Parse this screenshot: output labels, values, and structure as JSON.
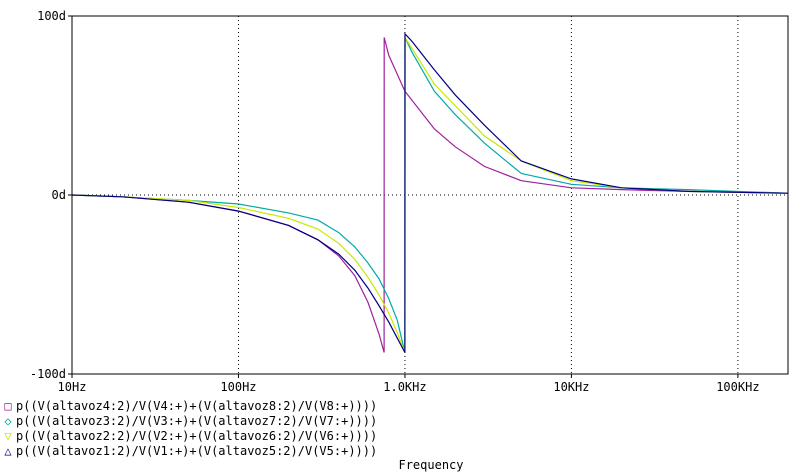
{
  "chart_data": {
    "type": "line",
    "xlabel": "Frequency",
    "ylabel": "",
    "x_scale": "log",
    "xlim": [
      10,
      200000
    ],
    "ylim": [
      -100,
      100
    ],
    "x_tick_labels": [
      "10Hz",
      "100Hz",
      "1.0KHz",
      "10KHz",
      "100KHz"
    ],
    "x_tick_values": [
      10,
      100,
      1000,
      10000,
      100000
    ],
    "y_tick_labels": [
      "100d",
      "0d",
      "-100d"
    ],
    "y_tick_values": [
      100,
      0,
      -100
    ],
    "grid": "dotted",
    "legend_placement": "bottom-left",
    "series": [
      {
        "name": "p((V(altavoz4:2)/V(V4:+)+(V(altavoz8:2)/V(V8:+))))",
        "color": "#a020a0",
        "marker": "square",
        "points": [
          [
            10,
            0
          ],
          [
            20,
            -1
          ],
          [
            50,
            -4
          ],
          [
            100,
            -9
          ],
          [
            200,
            -17
          ],
          [
            300,
            -25
          ],
          [
            400,
            -34
          ],
          [
            500,
            -45
          ],
          [
            600,
            -60
          ],
          [
            700,
            -78
          ],
          [
            750,
            -88
          ],
          [
            751,
            88
          ],
          [
            800,
            78
          ],
          [
            1000,
            58
          ],
          [
            1500,
            37
          ],
          [
            2000,
            27
          ],
          [
            3000,
            16
          ],
          [
            5000,
            8
          ],
          [
            10000,
            4
          ],
          [
            20000,
            3
          ],
          [
            50000,
            2
          ],
          [
            200000,
            1
          ]
        ]
      },
      {
        "name": "p((V(altavoz3:2)/V(V3:+)+(V(altavoz7:2)/V(V7:+))))",
        "color": "#00aaaa",
        "marker": "diamond",
        "points": [
          [
            10,
            0
          ],
          [
            20,
            -1
          ],
          [
            50,
            -3
          ],
          [
            100,
            -5
          ],
          [
            200,
            -10
          ],
          [
            300,
            -14
          ],
          [
            400,
            -21
          ],
          [
            500,
            -29
          ],
          [
            600,
            -38
          ],
          [
            700,
            -47
          ],
          [
            800,
            -58
          ],
          [
            900,
            -70
          ],
          [
            1000,
            -88
          ],
          [
            1001,
            88
          ],
          [
            1100,
            80
          ],
          [
            1500,
            58
          ],
          [
            2000,
            45
          ],
          [
            3000,
            29
          ],
          [
            5000,
            12
          ],
          [
            10000,
            6
          ],
          [
            20000,
            4
          ],
          [
            50000,
            3
          ],
          [
            200000,
            1
          ]
        ]
      },
      {
        "name": "p((V(altavoz2:2)/V(V2:+)+(V(altavoz6:2)/V(V6:+))))",
        "color": "#c8e800",
        "marker": "down-triangle",
        "points": [
          [
            10,
            0
          ],
          [
            20,
            -1
          ],
          [
            50,
            -3
          ],
          [
            100,
            -7
          ],
          [
            200,
            -13
          ],
          [
            300,
            -19
          ],
          [
            400,
            -27
          ],
          [
            500,
            -36
          ],
          [
            600,
            -46
          ],
          [
            700,
            -56
          ],
          [
            800,
            -66
          ],
          [
            900,
            -77
          ],
          [
            1000,
            -88
          ],
          [
            1001,
            88
          ],
          [
            1100,
            82
          ],
          [
            1500,
            62
          ],
          [
            2000,
            50
          ],
          [
            3000,
            33
          ],
          [
            5000,
            19
          ],
          [
            10000,
            8
          ],
          [
            20000,
            4
          ],
          [
            50000,
            2
          ],
          [
            200000,
            1
          ]
        ]
      },
      {
        "name": "p((V(altavoz1:2)/V(V1:+)+(V(altavoz5:2)/V(V5:+))))",
        "color": "#000080",
        "marker": "up-triangle",
        "points": [
          [
            10,
            0
          ],
          [
            20,
            -1
          ],
          [
            50,
            -4
          ],
          [
            100,
            -9
          ],
          [
            200,
            -17
          ],
          [
            300,
            -25
          ],
          [
            400,
            -33
          ],
          [
            500,
            -42
          ],
          [
            600,
            -52
          ],
          [
            700,
            -62
          ],
          [
            800,
            -71
          ],
          [
            900,
            -80
          ],
          [
            1000,
            -88
          ],
          [
            1001,
            90
          ],
          [
            1100,
            86
          ],
          [
            1500,
            70
          ],
          [
            2000,
            56
          ],
          [
            3000,
            39
          ],
          [
            5000,
            19
          ],
          [
            10000,
            9
          ],
          [
            20000,
            4
          ],
          [
            50000,
            2
          ],
          [
            200000,
            1
          ]
        ]
      }
    ]
  }
}
